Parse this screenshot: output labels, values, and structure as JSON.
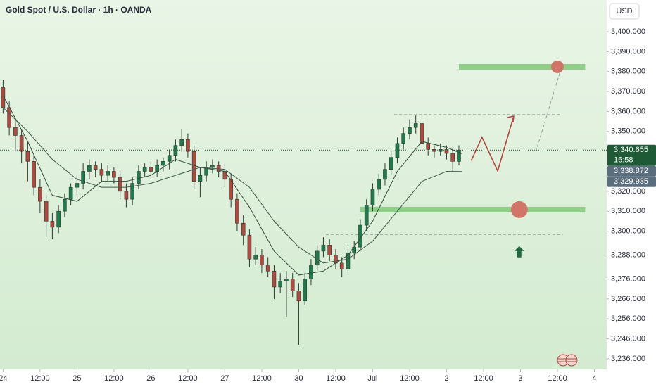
{
  "chart_data": {
    "type": "candlestick",
    "title": "Gold Spot / U.S. Dollar · 1h · OANDA",
    "currency": "USD",
    "up_color": "#1f7a4c",
    "down_color": "#b0493f",
    "xlim": [
      -1,
      196
    ],
    "xticks": [
      {
        "value": 0,
        "label": "24"
      },
      {
        "value": 12,
        "label": "12:00"
      },
      {
        "value": 24,
        "label": "25"
      },
      {
        "value": 36,
        "label": "12:00"
      },
      {
        "value": 48,
        "label": "26"
      },
      {
        "value": 60,
        "label": "12:00"
      },
      {
        "value": 72,
        "label": "27"
      },
      {
        "value": 84,
        "label": "12:00"
      },
      {
        "value": 96,
        "label": "30"
      },
      {
        "value": 108,
        "label": "12:00"
      },
      {
        "value": 120,
        "label": "Jul"
      },
      {
        "value": 132,
        "label": "12:00"
      },
      {
        "value": 144,
        "label": "2"
      },
      {
        "value": 156,
        "label": "12:00"
      },
      {
        "value": 168,
        "label": "3"
      },
      {
        "value": 180,
        "label": "12:00"
      },
      {
        "value": 192,
        "label": "4"
      }
    ],
    "ylim": [
      3230.7,
      3415.9
    ],
    "yticks": [
      {
        "value": 3400,
        "label": "3,400.000"
      },
      {
        "value": 3390,
        "label": "3,390.000"
      },
      {
        "value": 3380,
        "label": "3,380.000"
      },
      {
        "value": 3370,
        "label": "3,370.000"
      },
      {
        "value": 3360,
        "label": "3,360.000"
      },
      {
        "value": 3350,
        "label": "3,350.000"
      },
      {
        "value": 3320,
        "label": "3,320.000"
      },
      {
        "value": 3310,
        "label": "3,310.000"
      },
      {
        "value": 3300,
        "label": "3,300.000"
      },
      {
        "value": 3288,
        "label": "3,288.000"
      },
      {
        "value": 3276,
        "label": "3,276.000"
      },
      {
        "value": 3266,
        "label": "3,266.000"
      },
      {
        "value": 3256,
        "label": "3,256.000"
      },
      {
        "value": 3246,
        "label": "3,246.000"
      },
      {
        "value": 3236,
        "label": "3,236.000"
      }
    ],
    "x": [
      0,
      2,
      4,
      6,
      8,
      10,
      12,
      14,
      16,
      18,
      20,
      22,
      24,
      26,
      28,
      30,
      32,
      34,
      36,
      38,
      40,
      42,
      44,
      46,
      48,
      50,
      52,
      54,
      56,
      58,
      60,
      62,
      64,
      66,
      68,
      70,
      72,
      74,
      76,
      78,
      80,
      82,
      84,
      86,
      88,
      90,
      92,
      94,
      96,
      98,
      100,
      102,
      104,
      106,
      108,
      110,
      112,
      114,
      116,
      118,
      120,
      122,
      124,
      126,
      128,
      130,
      132,
      134,
      136,
      138,
      140,
      142,
      144,
      146,
      148
    ],
    "opens": [
      3372,
      3362,
      3352,
      3348,
      3340,
      3335,
      3322,
      3315,
      3305,
      3302,
      3310,
      3316,
      3322,
      3324,
      3330,
      3333,
      3331,
      3328,
      3330,
      3327,
      3320,
      3316,
      3324,
      3330,
      3332,
      3330,
      3333,
      3335,
      3338,
      3343,
      3346,
      3340,
      3325,
      3328,
      3332,
      3333,
      3330,
      3326,
      3316,
      3304,
      3298,
      3286,
      3288,
      3283,
      3280,
      3272,
      3275,
      3276,
      3270,
      3265,
      3276,
      3283,
      3290,
      3293,
      3288,
      3284,
      3281,
      3289,
      3292,
      3303,
      3313,
      3321,
      3326,
      3331,
      3337,
      3344,
      3349,
      3352,
      3354,
      3344,
      3341,
      3340,
      3341,
      3339,
      3335
    ],
    "highs": [
      3376,
      3365,
      3356,
      3351,
      3345,
      3338,
      3326,
      3318,
      3309,
      3313,
      3319,
      3324,
      3328,
      3334,
      3336,
      3335,
      3334,
      3333,
      3332,
      3330,
      3324,
      3327,
      3333,
      3334,
      3335,
      3336,
      3337,
      3341,
      3346,
      3351,
      3349,
      3343,
      3332,
      3335,
      3336,
      3335,
      3333,
      3329,
      3319,
      3308,
      3301,
      3292,
      3291,
      3287,
      3283,
      3279,
      3280,
      3279,
      3274,
      3279,
      3286,
      3293,
      3297,
      3296,
      3291,
      3287,
      3292,
      3295,
      3306,
      3316,
      3324,
      3329,
      3334,
      3340,
      3347,
      3352,
      3356,
      3358,
      3356,
      3347,
      3343,
      3344,
      3343,
      3342,
      3343
    ],
    "lows": [
      3359,
      3348,
      3340,
      3334,
      3325,
      3318,
      3309,
      3297,
      3296,
      3299,
      3307,
      3313,
      3318,
      3321,
      3326,
      3327,
      3325,
      3325,
      3324,
      3316,
      3312,
      3313,
      3321,
      3327,
      3326,
      3327,
      3330,
      3331,
      3335,
      3340,
      3337,
      3321,
      3317,
      3325,
      3329,
      3327,
      3322,
      3312,
      3300,
      3293,
      3282,
      3283,
      3279,
      3277,
      3266,
      3269,
      3257,
      3267,
      3243,
      3263,
      3273,
      3280,
      3287,
      3285,
      3281,
      3277,
      3279,
      3286,
      3290,
      3300,
      3310,
      3318,
      3323,
      3328,
      3334,
      3341,
      3346,
      3349,
      3341,
      3338,
      3337,
      3338,
      3336,
      3330,
      3333
    ],
    "closes": [
      3362,
      3352,
      3348,
      3340,
      3335,
      3322,
      3315,
      3305,
      3302,
      3310,
      3316,
      3322,
      3324,
      3330,
      3333,
      3331,
      3328,
      3330,
      3327,
      3320,
      3316,
      3324,
      3330,
      3332,
      3330,
      3333,
      3335,
      3338,
      3343,
      3346,
      3340,
      3325,
      3328,
      3332,
      3333,
      3330,
      3326,
      3316,
      3304,
      3298,
      3286,
      3288,
      3283,
      3280,
      3272,
      3275,
      3276,
      3270,
      3265,
      3276,
      3283,
      3290,
      3293,
      3288,
      3284,
      3281,
      3289,
      3292,
      3303,
      3313,
      3321,
      3326,
      3331,
      3337,
      3344,
      3349,
      3352,
      3354,
      3344,
      3341,
      3340,
      3341,
      3339,
      3335,
      3340.655
    ],
    "overlays": [
      {
        "color": "#2f4f3a",
        "x": [
          0,
          8,
          16,
          24,
          32,
          40,
          48,
          56,
          64,
          72,
          80,
          88,
          96,
          104,
          112,
          120,
          128,
          136,
          144,
          149
        ],
        "values": [
          3368,
          3345,
          3318,
          3315,
          3325,
          3325,
          3328,
          3336,
          3332,
          3330,
          3312,
          3290,
          3278,
          3280,
          3288,
          3305,
          3330,
          3345,
          3342,
          3338.872
        ]
      },
      {
        "color": "#3d5a4a",
        "x": [
          0,
          8,
          16,
          24,
          32,
          40,
          48,
          56,
          64,
          72,
          80,
          88,
          96,
          104,
          112,
          120,
          128,
          136,
          144,
          149
        ],
        "values": [
          3362,
          3350,
          3336,
          3326,
          3322,
          3322,
          3324,
          3328,
          3332,
          3331,
          3322,
          3305,
          3292,
          3284,
          3286,
          3295,
          3310,
          3325,
          3330,
          3329.935
        ]
      }
    ],
    "last_price": 3340.655,
    "price_tags": [
      {
        "value": 3340.655,
        "label": "3,340.655",
        "countdown": "16:58",
        "color": "#1e5a36"
      },
      {
        "value": 3338.872,
        "label": "3,338.872",
        "color": "#5a6e7e"
      },
      {
        "value": 3329.935,
        "label": "3,329.935",
        "color": "#5a6e7e"
      }
    ],
    "zones": [
      {
        "value": 3382.4,
        "x": [
          148,
          189
        ],
        "color": "#8fcf8a"
      },
      {
        "value": 3310.8,
        "x": [
          116,
          189
        ],
        "color": "#8fcf8a"
      }
    ],
    "targets": [
      {
        "x": 180,
        "value": 3382.4,
        "color": "#d07568"
      },
      {
        "x": 167.6,
        "value": 3310.8,
        "color": "#d07568"
      }
    ],
    "dashed_levels": [
      {
        "value": 3358.4,
        "x": [
          127,
          181
        ]
      },
      {
        "value": 3298.4,
        "x": [
          104.8,
          181.8
        ]
      }
    ],
    "projection": {
      "color": "#b5453c",
      "x": [
        152,
        155.5,
        160.6,
        165.8
      ],
      "values": [
        3335.4,
        3347.1,
        3330.2,
        3357.7
      ]
    },
    "projection_dash": {
      "color": "#9a9a9a",
      "x": [
        173,
        181
      ],
      "values": [
        3340,
        3380.6
      ]
    },
    "arrow": {
      "x": 167.6,
      "value": 3292.5,
      "color": "#1e6b40"
    }
  }
}
